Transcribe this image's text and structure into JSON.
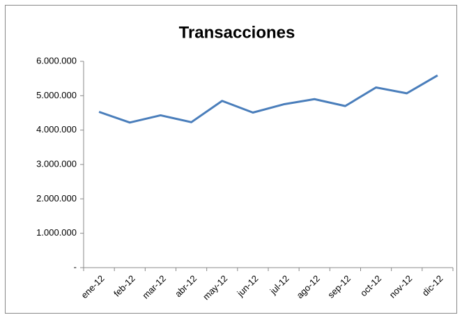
{
  "chart_data": {
    "type": "line",
    "title": "Transacciones",
    "categories": [
      "ene-12",
      "feb-12",
      "mar-12",
      "abr-12",
      "may-12",
      "jun-12",
      "jul-12",
      "ago-12",
      "sep-12",
      "oct-12",
      "nov-12",
      "dic-12"
    ],
    "series": [
      {
        "name": "Transacciones",
        "color": "#4a7ebb",
        "values": [
          4530000,
          4220000,
          4430000,
          4230000,
          4850000,
          4510000,
          4750000,
          4900000,
          4700000,
          5240000,
          5070000,
          5590000
        ]
      }
    ],
    "ylim": [
      0,
      6000000
    ],
    "yticks": [
      {
        "value": 0,
        "label": "-"
      },
      {
        "value": 1000000,
        "label": "1.000.000"
      },
      {
        "value": 2000000,
        "label": "2.000.000"
      },
      {
        "value": 3000000,
        "label": "3.000.000"
      },
      {
        "value": 4000000,
        "label": "4.000.000"
      },
      {
        "value": 5000000,
        "label": "5.000.000"
      },
      {
        "value": 6000000,
        "label": "6.000.000"
      }
    ],
    "grid": false,
    "legend": false
  }
}
